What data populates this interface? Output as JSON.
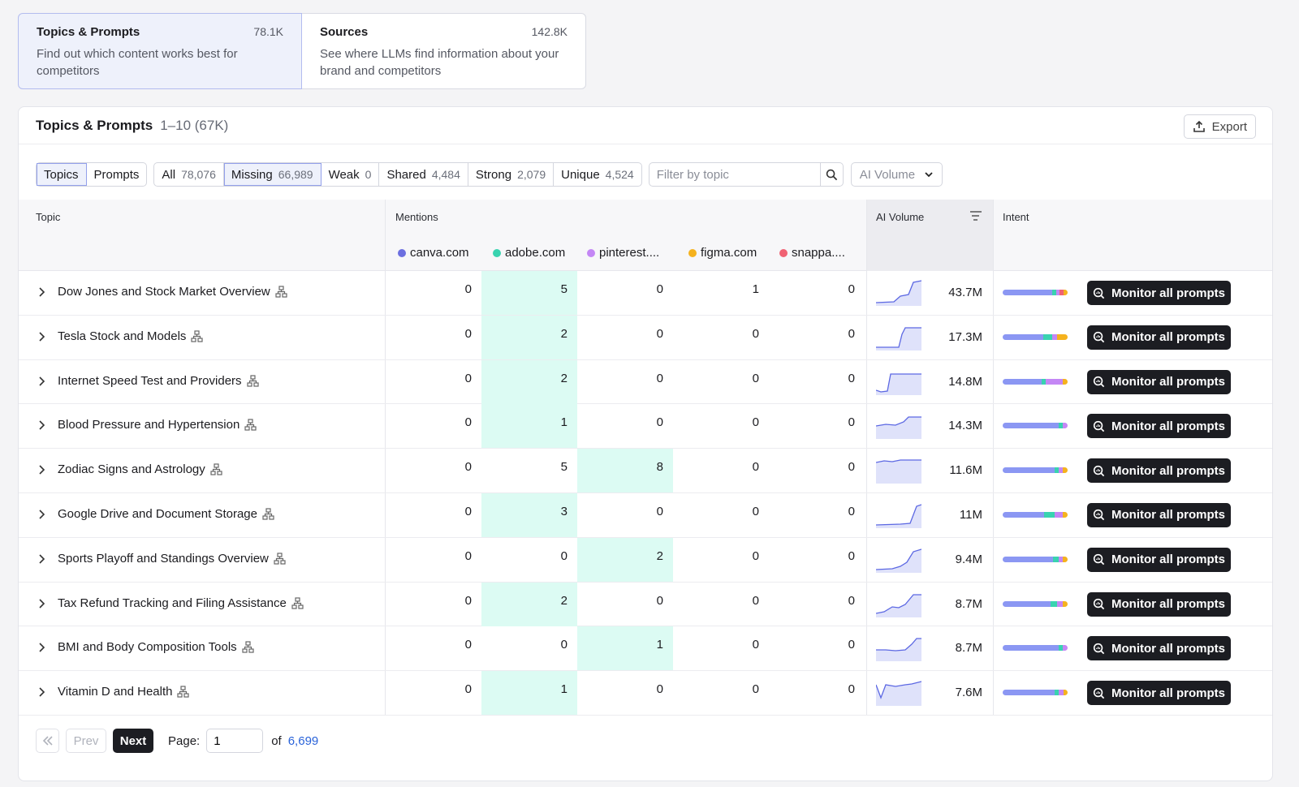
{
  "cards": [
    {
      "title": "Topics & Prompts",
      "count": "78.1K",
      "desc": "Find out which content works best for competitors"
    },
    {
      "title": "Sources",
      "count": "142.8K",
      "desc": "See where LLMs find information about your brand and competitors"
    }
  ],
  "panel": {
    "title": "Topics & Prompts",
    "range": "1–10 (67K)",
    "export_label": "Export"
  },
  "view_tabs": [
    {
      "label": "Topics"
    },
    {
      "label": "Prompts"
    }
  ],
  "filters": [
    {
      "label": "All",
      "count": "78,076"
    },
    {
      "label": "Missing",
      "count": "66,989"
    },
    {
      "label": "Weak",
      "count": "0"
    },
    {
      "label": "Shared",
      "count": "4,484"
    },
    {
      "label": "Strong",
      "count": "2,079"
    },
    {
      "label": "Unique",
      "count": "4,524"
    }
  ],
  "search": {
    "placeholder": "Filter by topic"
  },
  "volume_select": {
    "value": "AI Volume"
  },
  "columns": {
    "topic": "Topic",
    "mentions": "Mentions",
    "ai_volume": "AI Volume",
    "intent": "Intent"
  },
  "brands": [
    {
      "name": "canva.com",
      "color": "#6c6fe0"
    },
    {
      "name": "adobe.com",
      "color": "#39d3b0"
    },
    {
      "name": "pinterest....",
      "color": "#c487f5"
    },
    {
      "name": "figma.com",
      "color": "#f5b21e"
    },
    {
      "name": "snappa....",
      "color": "#f06273"
    }
  ],
  "rows": [
    {
      "topic": "Dow Jones and Stock Market Overview",
      "mentions": [
        "0",
        "5",
        "0",
        "1",
        "0"
      ],
      "hl": 1,
      "volume": "43.7M",
      "action": "Monitor all prompts"
    },
    {
      "topic": "Tesla Stock and Models",
      "mentions": [
        "0",
        "2",
        "0",
        "0",
        "0"
      ],
      "hl": 1,
      "volume": "17.3M",
      "action": "Monitor all prompts"
    },
    {
      "topic": "Internet Speed Test and Providers",
      "mentions": [
        "0",
        "2",
        "0",
        "0",
        "0"
      ],
      "hl": 1,
      "volume": "14.8M",
      "action": "Monitor all prompts"
    },
    {
      "topic": "Blood Pressure and Hypertension",
      "mentions": [
        "0",
        "1",
        "0",
        "0",
        "0"
      ],
      "hl": 1,
      "volume": "14.3M",
      "action": "Monitor all prompts"
    },
    {
      "topic": "Zodiac Signs and Astrology",
      "mentions": [
        "0",
        "5",
        "8",
        "0",
        "0"
      ],
      "hl": 2,
      "volume": "11.6M",
      "action": "Monitor all prompts"
    },
    {
      "topic": "Google Drive and Document Storage",
      "mentions": [
        "0",
        "3",
        "0",
        "0",
        "0"
      ],
      "hl": 1,
      "volume": "11M",
      "action": "Monitor all prompts"
    },
    {
      "topic": "Sports Playoff and Standings Overview",
      "mentions": [
        "0",
        "0",
        "2",
        "0",
        "0"
      ],
      "hl": 2,
      "volume": "9.4M",
      "action": "Monitor all prompts"
    },
    {
      "topic": "Tax Refund Tracking and Filing Assistance",
      "mentions": [
        "0",
        "2",
        "0",
        "0",
        "0"
      ],
      "hl": 1,
      "volume": "8.7M",
      "action": "Monitor all prompts"
    },
    {
      "topic": "BMI and Body Composition Tools",
      "mentions": [
        "0",
        "0",
        "1",
        "0",
        "0"
      ],
      "hl": 2,
      "volume": "8.7M",
      "action": "Monitor all prompts"
    },
    {
      "topic": "Vitamin D and Health",
      "mentions": [
        "0",
        "1",
        "0",
        "0",
        "0"
      ],
      "hl": 1,
      "volume": "7.6M",
      "action": "Monitor all prompts"
    }
  ],
  "pagination": {
    "prev": "Prev",
    "next": "Next",
    "page_label": "Page:",
    "page": "1",
    "of_label": "of",
    "total": "6,699"
  }
}
